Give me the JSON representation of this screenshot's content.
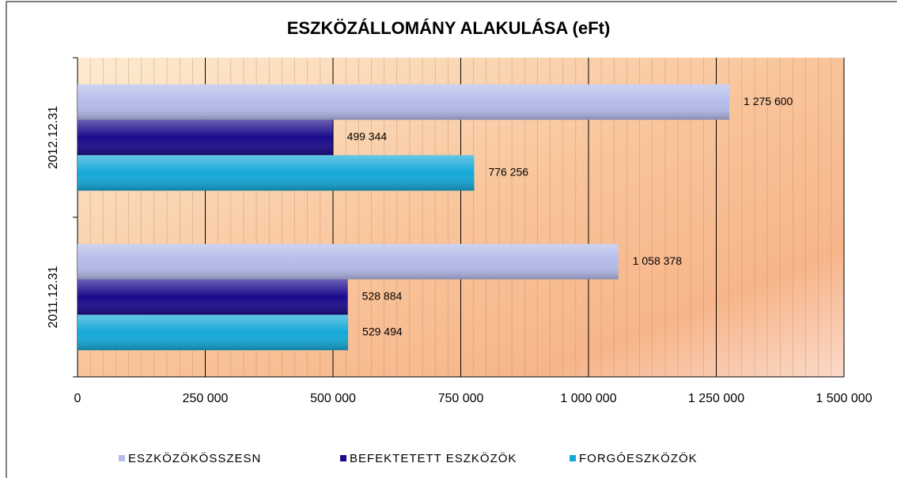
{
  "chart_data": {
    "type": "hbar",
    "title": "ESZKÖZÁLLOMÁNY ALAKULÁSA (eFt)",
    "categories": [
      "2012.12.31",
      "2011.12.31"
    ],
    "series": [
      {
        "name": "ESZKÖZÖKÖSSZESN",
        "color": "#b4bbea",
        "values": [
          1275600,
          1058378
        ],
        "value_labels": [
          "1 275 600",
          "1 058 378"
        ]
      },
      {
        "name": "BEFEKTETETT ESZKÖZÖK",
        "color": "#1a0a8c",
        "values": [
          499344,
          528884
        ],
        "value_labels": [
          "499 344",
          "528 884"
        ]
      },
      {
        "name": "FORGÓESZKÖZÖK",
        "color": "#14a8d8",
        "values": [
          776256,
          529494
        ],
        "value_labels": [
          "776 256",
          "529 494"
        ]
      }
    ],
    "xlim": [
      0,
      1500000
    ],
    "xticks": [
      0,
      {
        "value": 250000,
        "label": "250 000"
      },
      {
        "value": 500000,
        "label": "500 000"
      },
      {
        "value": 750000,
        "label": "750 000"
      },
      {
        "value": 1000000,
        "label": "1 000 000"
      },
      {
        "value": 1250000,
        "label": "1 250 000"
      },
      {
        "value": 1500000,
        "label": "1 500 000"
      }
    ],
    "grid": true,
    "legend": "bottom"
  }
}
